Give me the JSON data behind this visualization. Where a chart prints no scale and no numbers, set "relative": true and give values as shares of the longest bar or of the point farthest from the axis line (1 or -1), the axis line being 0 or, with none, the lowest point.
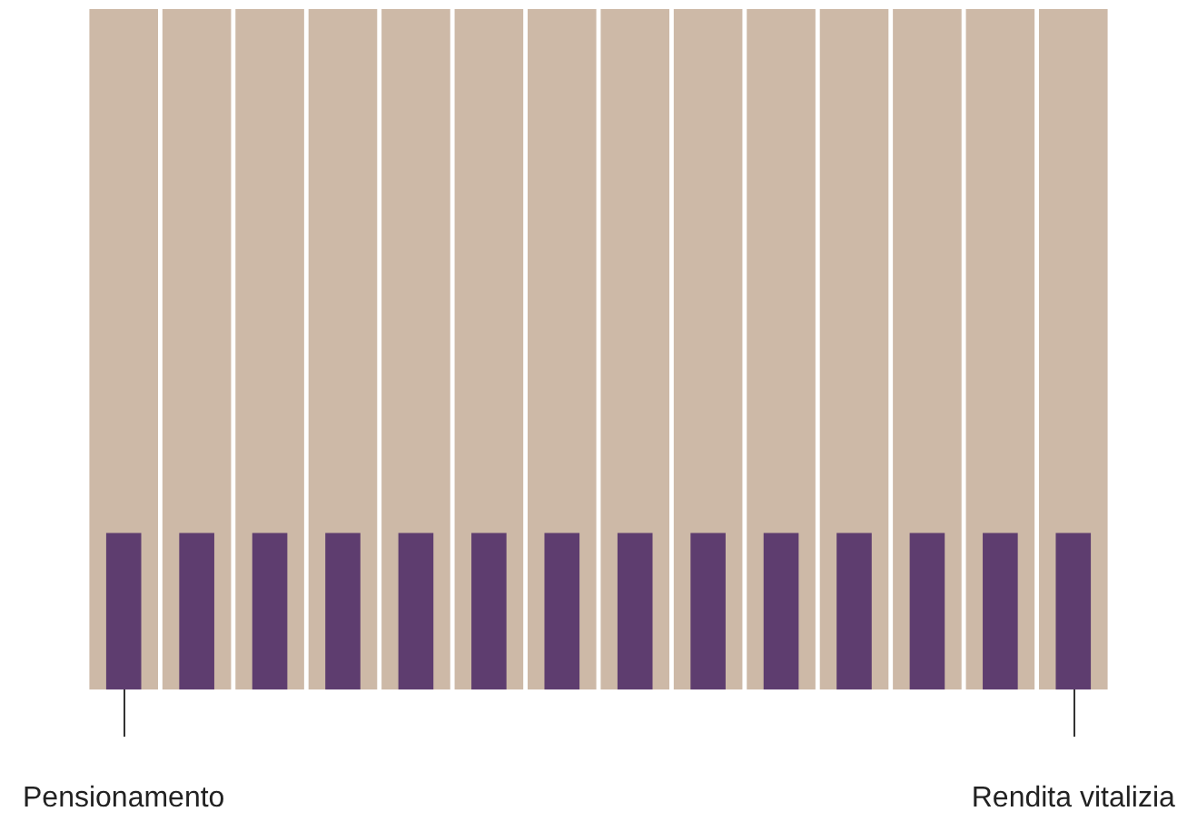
{
  "chart_data": {
    "type": "bar",
    "relative": true,
    "categories": [
      "Pensionamento",
      null,
      null,
      null,
      null,
      null,
      null,
      null,
      null,
      null,
      null,
      null,
      null,
      "Rendita vitalizia"
    ],
    "series": [
      {
        "color": "#cdb9a7",
        "values": [
          1,
          1,
          1,
          1,
          1,
          1,
          1,
          1,
          1,
          1,
          1,
          1,
          1,
          1
        ]
      },
      {
        "color": "#5e3d6f",
        "values": [
          0.23,
          0.23,
          0.23,
          0.23,
          0.23,
          0.23,
          0.23,
          0.23,
          0.23,
          0.23,
          0.23,
          0.23,
          0.23,
          0.23
        ]
      }
    ]
  }
}
